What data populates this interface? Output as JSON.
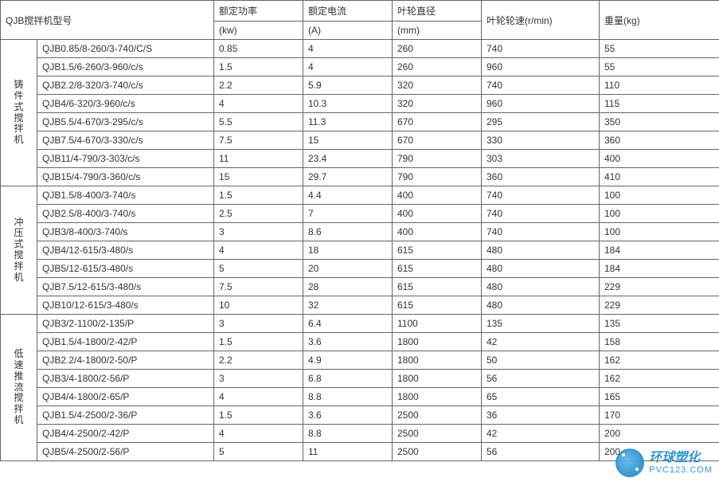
{
  "table": {
    "header_row1": {
      "model": "QJB搅拌机型号",
      "power": "额定功率",
      "current": "额定电流",
      "diameter": "叶轮直径",
      "speed": "叶轮轮速(r/min)",
      "weight": "重量(kg)"
    },
    "header_row2": {
      "power_unit": "(kw)",
      "current_unit": "(A)",
      "diameter_unit": "(mm)"
    },
    "groups": [
      {
        "category": "铸件式搅拌机",
        "rows": [
          {
            "model": "QJB0.85/8-260/3-740/C/S",
            "power": "0.85",
            "current": "4",
            "diameter": "260",
            "speed": "740",
            "weight": "55"
          },
          {
            "model": "QJB1.5/6-260/3-960/c/s",
            "power": "1.5",
            "current": "4",
            "diameter": "260",
            "speed": "960",
            "weight": "55"
          },
          {
            "model": "QJB2.2/8-320/3-740/c/s",
            "power": "2.2",
            "current": "5.9",
            "diameter": "320",
            "speed": "740",
            "weight": "110"
          },
          {
            "model": "QJB4/6-320/3-960/c/s",
            "power": "4",
            "current": "10.3",
            "diameter": "320",
            "speed": "960",
            "weight": "115"
          },
          {
            "model": "QJB5.5/4-670/3-295/c/s",
            "power": "5.5",
            "current": "11.3",
            "diameter": "670",
            "speed": "295",
            "weight": "350"
          },
          {
            "model": "QJB7.5/4-670/3-330/c/s",
            "power": "7.5",
            "current": "15",
            "diameter": "670",
            "speed": "330",
            "weight": "360"
          },
          {
            "model": "QJB11/4-790/3-303/c/s",
            "power": "11",
            "current": "23.4",
            "diameter": "790",
            "speed": "303",
            "weight": "400"
          },
          {
            "model": "QJB15/4-790/3-360/c/s",
            "power": "15",
            "current": "29.7",
            "diameter": "790",
            "speed": "360",
            "weight": "410"
          }
        ]
      },
      {
        "category": "冲压式搅拌机",
        "rows": [
          {
            "model": "QJB1.5/8-400/3-740/s",
            "power": "1.5",
            "current": "4.4",
            "diameter": "400",
            "speed": "740",
            "weight": "100"
          },
          {
            "model": "QJB2.5/8-400/3-740/s",
            "power": "2.5",
            "current": "7",
            "diameter": "400",
            "speed": "740",
            "weight": "100"
          },
          {
            "model": "QJB3/8-400/3-740/s",
            "power": "3",
            "current": "8.6",
            "diameter": "400",
            "speed": "740",
            "weight": "100"
          },
          {
            "model": "QJB4/12-615/3-480/s",
            "power": "4",
            "current": "18",
            "diameter": "615",
            "speed": "480",
            "weight": "184"
          },
          {
            "model": "QJB5/12-615/3-480/s",
            "power": "5",
            "current": "20",
            "diameter": "615",
            "speed": "480",
            "weight": "184"
          },
          {
            "model": "QJB7.5/12-615/3-480/s",
            "power": "7.5",
            "current": "28",
            "diameter": "615",
            "speed": "480",
            "weight": "229"
          },
          {
            "model": "QJB10/12-615/3-480/s",
            "power": "10",
            "current": "32",
            "diameter": "615",
            "speed": "480",
            "weight": "229"
          }
        ]
      },
      {
        "category": "低速推流搅拌机",
        "rows": [
          {
            "model": "QJB3/2-1100/2-135/P",
            "power": "3",
            "current": "6.4",
            "diameter": "1100",
            "speed": "135",
            "weight": "135"
          },
          {
            "model": "QJB1.5/4-1800/2-42/P",
            "power": "1.5",
            "current": "3.6",
            "diameter": "1800",
            "speed": "42",
            "weight": "158"
          },
          {
            "model": "QJB2.2/4-1800/2-50/P",
            "power": "2.2",
            "current": "4.9",
            "diameter": "1800",
            "speed": "50",
            "weight": "162"
          },
          {
            "model": "QJB3/4-1800/2-56/P",
            "power": "3",
            "current": "6.8",
            "diameter": "1800",
            "speed": "56",
            "weight": "162"
          },
          {
            "model": "QJB4/4-1800/2-65/P",
            "power": "4",
            "current": "8.8",
            "diameter": "1800",
            "speed": "65",
            "weight": "165"
          },
          {
            "model": "QJB1.5/4-2500/2-36/P",
            "power": "1.5",
            "current": "3.6",
            "diameter": "2500",
            "speed": "36",
            "weight": "170"
          },
          {
            "model": "QJB4/4-2500/2-42/P",
            "power": "4",
            "current": "8.8",
            "diameter": "2500",
            "speed": "42",
            "weight": "200"
          },
          {
            "model": "QJB5/4-2500/2-56/P",
            "power": "5",
            "current": "11",
            "diameter": "2500",
            "speed": "56",
            "weight": "200"
          }
        ]
      }
    ],
    "columns": [
      "col-cat",
      "col-model",
      "col-power",
      "col-current",
      "col-diameter",
      "col-speed",
      "col-weight"
    ],
    "border_color": "#666666",
    "text_color": "#333333",
    "font_size": 12,
    "background_color": "#ffffff"
  },
  "watermark": {
    "cn": "环球塑化",
    "url": "PVC123.COM",
    "color": "#2a8fc9"
  }
}
